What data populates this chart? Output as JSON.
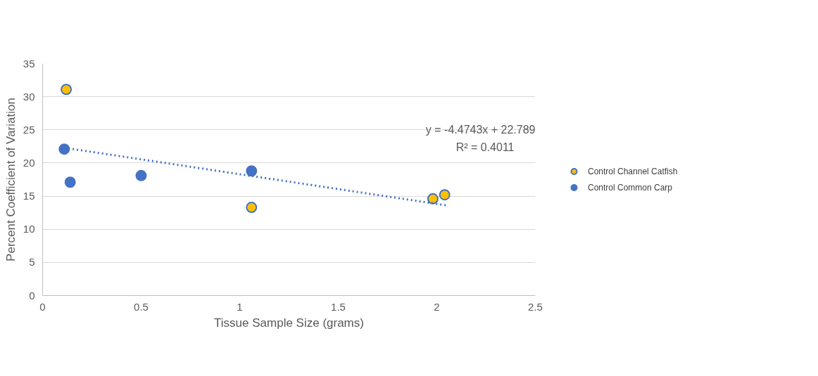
{
  "chart_data": {
    "type": "scatter",
    "xlabel": "Tissue Sample Size (grams)",
    "ylabel": "Percent Coefficient of Variation",
    "xlim": [
      0,
      2.5
    ],
    "xticks": [
      0,
      0.5,
      1,
      1.5,
      2,
      2.5
    ],
    "ylim": [
      0,
      35
    ],
    "yticks": [
      0,
      5,
      10,
      15,
      20,
      25,
      30,
      35
    ],
    "grid": "y",
    "legend": "right",
    "annotations": [
      "y = -4.4743x + 22.789",
      "R² = 0.4011"
    ],
    "series": [
      {
        "name": "Control Channel Catfish",
        "color": "#ffc000",
        "marker": "circle",
        "x": [
          0.12,
          1.06,
          1.98,
          2.04
        ],
        "values": [
          31.1,
          13.3,
          14.6,
          15.2
        ]
      },
      {
        "name": "Control Common Carp",
        "color": "#4472c4",
        "marker": "circle",
        "x": [
          0.11,
          0.14,
          0.5,
          1.06
        ],
        "values": [
          22.1,
          17.1,
          18.1,
          18.8
        ]
      },
      {
        "type": "line",
        "color": "#4472c4",
        "line_style": "dotted",
        "x": [
          0.11,
          2.05
        ],
        "values": [
          22.3,
          13.6
        ]
      }
    ]
  }
}
